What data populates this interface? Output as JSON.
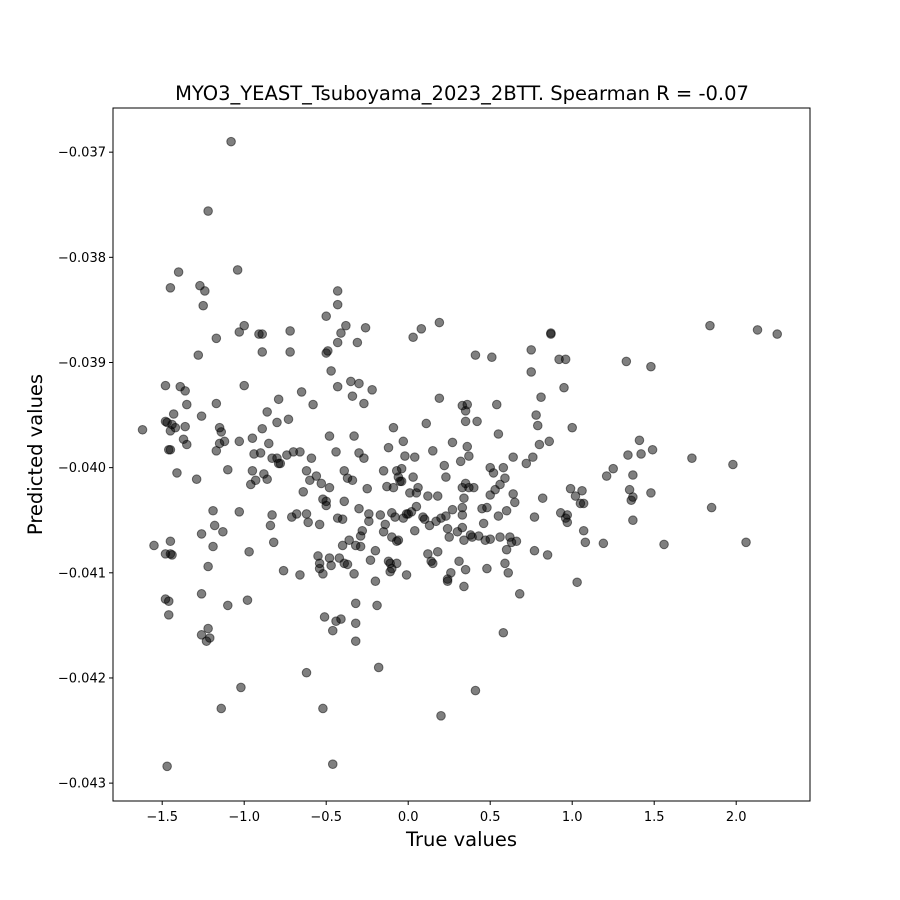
{
  "chart_data": {
    "type": "scatter",
    "title": "MYO3_YEAST_Tsuboyama_2023_2BTT. Spearman R = -0.07",
    "xlabel": "True values",
    "ylabel": "Predicted values",
    "xlim": [
      -1.8,
      2.45
    ],
    "ylim": [
      -0.04317,
      -0.03658
    ],
    "x_ticks": [
      -1.5,
      -1.0,
      -0.5,
      0.0,
      0.5,
      1.0,
      1.5,
      2.0
    ],
    "x_tick_labels": [
      "−1.5",
      "−1.0",
      "−0.5",
      "0.0",
      "0.5",
      "1.0",
      "1.5",
      "2.0"
    ],
    "y_ticks": [
      -0.037,
      -0.038,
      -0.039,
      -0.04,
      -0.041,
      -0.042,
      -0.043
    ],
    "y_tick_labels": [
      "−0.037",
      "−0.038",
      "−0.039",
      "−0.040",
      "−0.041",
      "−0.042",
      "−0.043"
    ],
    "grid": false,
    "legend": "none",
    "marker_color": "#000000",
    "marker_alpha": 0.5,
    "points": [
      [
        -1.62,
        -0.03964
      ],
      [
        -1.55,
        -0.04074
      ],
      [
        -1.48,
        -0.03922
      ],
      [
        -1.48,
        -0.03956
      ],
      [
        -1.47,
        -0.03957
      ],
      [
        -1.46,
        -0.03983
      ],
      [
        -1.45,
        -0.03983
      ],
      [
        -1.48,
        -0.04082
      ],
      [
        -1.45,
        -0.04082
      ],
      [
        -1.48,
        -0.04125
      ],
      [
        -1.46,
        -0.04127
      ],
      [
        -1.46,
        -0.0414
      ],
      [
        -1.47,
        -0.04284
      ],
      [
        -1.45,
        -0.03829
      ],
      [
        -1.4,
        -0.03814
      ],
      [
        -1.43,
        -0.03949
      ],
      [
        -1.44,
        -0.03959
      ],
      [
        -1.45,
        -0.03965
      ],
      [
        -1.42,
        -0.03962
      ],
      [
        -1.41,
        -0.04005
      ],
      [
        -1.39,
        -0.03923
      ],
      [
        -1.36,
        -0.03927
      ],
      [
        -1.35,
        -0.0394
      ],
      [
        -1.37,
        -0.03973
      ],
      [
        -1.35,
        -0.03978
      ],
      [
        -1.36,
        -0.03961
      ],
      [
        -1.45,
        -0.0407
      ],
      [
        -1.44,
        -0.04083
      ],
      [
        -1.28,
        -0.03893
      ],
      [
        -1.29,
        -0.04011
      ],
      [
        -1.27,
        -0.03827
      ],
      [
        -1.24,
        -0.03832
      ],
      [
        -1.25,
        -0.03846
      ],
      [
        -1.22,
        -0.03756
      ],
      [
        -1.26,
        -0.03951
      ],
      [
        -1.26,
        -0.04063
      ],
      [
        -1.26,
        -0.0412
      ],
      [
        -1.26,
        -0.04159
      ],
      [
        -1.22,
        -0.04153
      ],
      [
        -1.23,
        -0.04165
      ],
      [
        -1.21,
        -0.04162
      ],
      [
        -1.22,
        -0.04094
      ],
      [
        -1.19,
        -0.04041
      ],
      [
        -1.19,
        -0.04075
      ],
      [
        -1.18,
        -0.04055
      ],
      [
        -1.17,
        -0.03877
      ],
      [
        -1.17,
        -0.03939
      ],
      [
        -1.15,
        -0.03962
      ],
      [
        -1.14,
        -0.03966
      ],
      [
        -1.15,
        -0.03977
      ],
      [
        -1.17,
        -0.03984
      ],
      [
        -1.12,
        -0.03975
      ],
      [
        -1.13,
        -0.04061
      ],
      [
        -1.14,
        -0.04229
      ],
      [
        -1.1,
        -0.04002
      ],
      [
        -1.1,
        -0.04131
      ],
      [
        -1.08,
        -0.0369
      ],
      [
        -1.04,
        -0.03812
      ],
      [
        -1.03,
        -0.03871
      ],
      [
        -1.0,
        -0.03865
      ],
      [
        -1.0,
        -0.03922
      ],
      [
        -1.03,
        -0.03975
      ],
      [
        -1.03,
        -0.04042
      ],
      [
        -1.02,
        -0.04209
      ],
      [
        -0.98,
        -0.04126
      ],
      [
        -0.97,
        -0.0408
      ],
      [
        -0.96,
        -0.04016
      ],
      [
        -0.95,
        -0.03972
      ],
      [
        -0.94,
        -0.03987
      ],
      [
        -0.93,
        -0.04012
      ],
      [
        -0.95,
        -0.04003
      ],
      [
        -0.91,
        -0.03873
      ],
      [
        -0.89,
        -0.03873
      ],
      [
        -0.89,
        -0.0389
      ],
      [
        -0.9,
        -0.03986
      ],
      [
        -0.89,
        -0.03963
      ],
      [
        -0.86,
        -0.03947
      ],
      [
        -0.85,
        -0.03977
      ],
      [
        -0.86,
        -0.04011
      ],
      [
        -0.88,
        -0.04006
      ],
      [
        -0.84,
        -0.04055
      ],
      [
        -0.83,
        -0.04045
      ],
      [
        -0.82,
        -0.04071
      ],
      [
        -0.83,
        -0.03991
      ],
      [
        -0.8,
        -0.03991
      ],
      [
        -0.8,
        -0.03957
      ],
      [
        -0.79,
        -0.03935
      ],
      [
        -0.79,
        -0.03996
      ],
      [
        -0.78,
        -0.03996
      ],
      [
        -0.76,
        -0.04098
      ],
      [
        -0.74,
        -0.03988
      ],
      [
        -0.73,
        -0.03954
      ],
      [
        -0.72,
        -0.0387
      ],
      [
        -0.72,
        -0.0389
      ],
      [
        -0.7,
        -0.03985
      ],
      [
        -0.71,
        -0.04047
      ],
      [
        -0.68,
        -0.04044
      ],
      [
        -0.66,
        -0.03985
      ],
      [
        -0.66,
        -0.04102
      ],
      [
        -0.65,
        -0.03928
      ],
      [
        -0.64,
        -0.04023
      ],
      [
        -0.62,
        -0.04003
      ],
      [
        -0.62,
        -0.04044
      ],
      [
        -0.62,
        -0.04195
      ],
      [
        -0.61,
        -0.04052
      ],
      [
        -0.6,
        -0.04012
      ],
      [
        -0.59,
        -0.03991
      ],
      [
        -0.58,
        -0.0394
      ],
      [
        -0.56,
        -0.04008
      ],
      [
        -0.54,
        -0.04054
      ],
      [
        -0.55,
        -0.04084
      ],
      [
        -0.54,
        -0.04091
      ],
      [
        -0.54,
        -0.04096
      ],
      [
        -0.53,
        -0.04015
      ],
      [
        -0.52,
        -0.0403
      ],
      [
        -0.52,
        -0.04101
      ],
      [
        -0.52,
        -0.04229
      ],
      [
        -0.51,
        -0.04142
      ],
      [
        -0.5,
        -0.04032
      ],
      [
        -0.5,
        -0.04036
      ],
      [
        -0.5,
        -0.03856
      ],
      [
        -0.5,
        -0.03891
      ],
      [
        -0.49,
        -0.03889
      ],
      [
        -0.48,
        -0.0397
      ],
      [
        -0.48,
        -0.04019
      ],
      [
        -0.48,
        -0.04086
      ],
      [
        -0.47,
        -0.03908
      ],
      [
        -0.47,
        -0.04093
      ],
      [
        -0.46,
        -0.04155
      ],
      [
        -0.46,
        -0.04282
      ],
      [
        -0.44,
        -0.03985
      ],
      [
        -0.44,
        -0.04146
      ],
      [
        -0.43,
        -0.03832
      ],
      [
        -0.43,
        -0.03845
      ],
      [
        -0.43,
        -0.03881
      ],
      [
        -0.43,
        -0.03923
      ],
      [
        -0.43,
        -0.04048
      ],
      [
        -0.42,
        -0.04086
      ],
      [
        -0.41,
        -0.03872
      ],
      [
        -0.41,
        -0.04144
      ],
      [
        -0.4,
        -0.04049
      ],
      [
        -0.4,
        -0.04074
      ],
      [
        -0.39,
        -0.04003
      ],
      [
        -0.39,
        -0.04032
      ],
      [
        -0.39,
        -0.04091
      ],
      [
        -0.38,
        -0.03865
      ],
      [
        -0.37,
        -0.04092
      ],
      [
        -0.37,
        -0.0401
      ],
      [
        -0.36,
        -0.04069
      ],
      [
        -0.35,
        -0.03918
      ],
      [
        -0.34,
        -0.03932
      ],
      [
        -0.34,
        -0.04012
      ],
      [
        -0.33,
        -0.0397
      ],
      [
        -0.32,
        -0.04129
      ],
      [
        -0.32,
        -0.04148
      ],
      [
        -0.32,
        -0.04165
      ],
      [
        -0.32,
        -0.04074
      ],
      [
        -0.33,
        -0.04101
      ],
      [
        -0.31,
        -0.03881
      ],
      [
        -0.3,
        -0.0392
      ],
      [
        -0.3,
        -0.03986
      ],
      [
        -0.3,
        -0.04039
      ],
      [
        -0.29,
        -0.04065
      ],
      [
        -0.29,
        -0.04075
      ],
      [
        -0.28,
        -0.0406
      ],
      [
        -0.27,
        -0.03939
      ],
      [
        -0.27,
        -0.03991
      ],
      [
        -0.26,
        -0.03867
      ],
      [
        -0.25,
        -0.0402
      ],
      [
        -0.24,
        -0.04044
      ],
      [
        -0.24,
        -0.04051
      ],
      [
        -0.23,
        -0.04088
      ],
      [
        -0.22,
        -0.03926
      ],
      [
        -0.2,
        -0.04079
      ],
      [
        -0.2,
        -0.04108
      ],
      [
        -0.19,
        -0.04131
      ],
      [
        -0.18,
        -0.0419
      ],
      [
        -0.17,
        -0.04045
      ],
      [
        -0.15,
        -0.04061
      ],
      [
        -0.15,
        -0.04003
      ],
      [
        -0.14,
        -0.04054
      ],
      [
        -0.13,
        -0.04018
      ],
      [
        -0.12,
        -0.04089
      ],
      [
        -0.12,
        -0.03981
      ],
      [
        -0.11,
        -0.04091
      ],
      [
        -0.11,
        -0.04099
      ],
      [
        -0.1,
        -0.04043
      ],
      [
        -0.1,
        -0.04066
      ],
      [
        -0.1,
        -0.04096
      ],
      [
        -0.09,
        -0.04019
      ],
      [
        -0.09,
        -0.03962
      ],
      [
        -0.08,
        -0.04047
      ],
      [
        -0.07,
        -0.04003
      ],
      [
        -0.07,
        -0.0407
      ],
      [
        -0.07,
        -0.04091
      ],
      [
        -0.06,
        -0.04009
      ],
      [
        -0.06,
        -0.04069
      ],
      [
        -0.05,
        -0.04013
      ],
      [
        -0.04,
        -0.04001
      ],
      [
        -0.04,
        -0.04013
      ],
      [
        -0.03,
        -0.03975
      ],
      [
        -0.03,
        -0.04048
      ],
      [
        -0.02,
        -0.03989
      ],
      [
        -0.01,
        -0.04044
      ],
      [
        -0.01,
        -0.04102
      ],
      [
        0.0,
        -0.04044
      ],
      [
        0.01,
        -0.04024
      ],
      [
        0.02,
        -0.04042
      ],
      [
        0.03,
        -0.03876
      ],
      [
        0.03,
        -0.04009
      ],
      [
        0.04,
        -0.0399
      ],
      [
        0.04,
        -0.0406
      ],
      [
        0.05,
        -0.04024
      ],
      [
        0.05,
        -0.04037
      ],
      [
        0.06,
        -0.04019
      ],
      [
        0.08,
        -0.03868
      ],
      [
        0.09,
        -0.04047
      ],
      [
        0.1,
        -0.04049
      ],
      [
        0.11,
        -0.03958
      ],
      [
        0.12,
        -0.04027
      ],
      [
        0.12,
        -0.04082
      ],
      [
        0.13,
        -0.04055
      ],
      [
        0.14,
        -0.04089
      ],
      [
        0.15,
        -0.03984
      ],
      [
        0.15,
        -0.04091
      ],
      [
        0.17,
        -0.04051
      ],
      [
        0.18,
        -0.04027
      ],
      [
        0.18,
        -0.0408
      ],
      [
        0.19,
        -0.03934
      ],
      [
        0.19,
        -0.03862
      ],
      [
        0.2,
        -0.04048
      ],
      [
        0.2,
        -0.04236
      ],
      [
        0.22,
        -0.03998
      ],
      [
        0.23,
        -0.04009
      ],
      [
        0.23,
        -0.04046
      ],
      [
        0.24,
        -0.04058
      ],
      [
        0.24,
        -0.04106
      ],
      [
        0.24,
        -0.04108
      ],
      [
        0.25,
        -0.04066
      ],
      [
        0.26,
        -0.041
      ],
      [
        0.27,
        -0.0404
      ],
      [
        0.27,
        -0.03976
      ],
      [
        0.3,
        -0.04061
      ],
      [
        0.31,
        -0.04089
      ],
      [
        0.32,
        -0.03994
      ],
      [
        0.33,
        -0.03941
      ],
      [
        0.33,
        -0.04019
      ],
      [
        0.33,
        -0.04038
      ],
      [
        0.33,
        -0.04045
      ],
      [
        0.33,
        -0.04057
      ],
      [
        0.34,
        -0.04029
      ],
      [
        0.34,
        -0.04069
      ],
      [
        0.34,
        -0.04113
      ],
      [
        0.35,
        -0.04015
      ],
      [
        0.35,
        -0.04097
      ],
      [
        0.35,
        -0.03946
      ],
      [
        0.35,
        -0.03956
      ],
      [
        0.36,
        -0.0394
      ],
      [
        0.36,
        -0.0398
      ],
      [
        0.37,
        -0.03989
      ],
      [
        0.37,
        -0.04019
      ],
      [
        0.38,
        -0.04064
      ],
      [
        0.39,
        -0.04066
      ],
      [
        0.4,
        -0.04019
      ],
      [
        0.41,
        -0.03893
      ],
      [
        0.41,
        -0.04212
      ],
      [
        0.42,
        -0.03956
      ],
      [
        0.43,
        -0.04065
      ],
      [
        0.45,
        -0.04039
      ],
      [
        0.46,
        -0.04053
      ],
      [
        0.47,
        -0.04069
      ],
      [
        0.48,
        -0.04038
      ],
      [
        0.48,
        -0.04096
      ],
      [
        0.5,
        -0.04
      ],
      [
        0.5,
        -0.04026
      ],
      [
        0.5,
        -0.04068
      ],
      [
        0.51,
        -0.03895
      ],
      [
        0.52,
        -0.04005
      ],
      [
        0.53,
        -0.04021
      ],
      [
        0.54,
        -0.0394
      ],
      [
        0.55,
        -0.04046
      ],
      [
        0.55,
        -0.03968
      ],
      [
        0.56,
        -0.04016
      ],
      [
        0.56,
        -0.04066
      ],
      [
        0.58,
        -0.04
      ],
      [
        0.58,
        -0.04157
      ],
      [
        0.59,
        -0.0401
      ],
      [
        0.59,
        -0.04091
      ],
      [
        0.6,
        -0.04078
      ],
      [
        0.6,
        -0.04041
      ],
      [
        0.61,
        -0.041
      ],
      [
        0.62,
        -0.04066
      ],
      [
        0.63,
        -0.04071
      ],
      [
        0.64,
        -0.0399
      ],
      [
        0.64,
        -0.04025
      ],
      [
        0.65,
        -0.04033
      ],
      [
        0.66,
        -0.0407
      ],
      [
        0.68,
        -0.0412
      ],
      [
        0.72,
        -0.03996
      ],
      [
        0.75,
        -0.03888
      ],
      [
        0.75,
        -0.03909
      ],
      [
        0.76,
        -0.0399
      ],
      [
        0.77,
        -0.04047
      ],
      [
        0.77,
        -0.04079
      ],
      [
        0.78,
        -0.0395
      ],
      [
        0.79,
        -0.0396
      ],
      [
        0.8,
        -0.03978
      ],
      [
        0.81,
        -0.03933
      ],
      [
        0.82,
        -0.04029
      ],
      [
        0.85,
        -0.04083
      ],
      [
        0.86,
        -0.03975
      ],
      [
        0.87,
        -0.03872
      ],
      [
        0.87,
        -0.03873
      ],
      [
        0.92,
        -0.03897
      ],
      [
        0.93,
        -0.04043
      ],
      [
        0.95,
        -0.03924
      ],
      [
        0.96,
        -0.03897
      ],
      [
        0.96,
        -0.04048
      ],
      [
        0.97,
        -0.04052
      ],
      [
        0.97,
        -0.04045
      ],
      [
        0.99,
        -0.0402
      ],
      [
        1.0,
        -0.03962
      ],
      [
        1.02,
        -0.04027
      ],
      [
        1.03,
        -0.04109
      ],
      [
        1.05,
        -0.04034
      ],
      [
        1.06,
        -0.04022
      ],
      [
        1.07,
        -0.04034
      ],
      [
        1.07,
        -0.0406
      ],
      [
        1.08,
        -0.04071
      ],
      [
        1.19,
        -0.04072
      ],
      [
        1.21,
        -0.04008
      ],
      [
        1.25,
        -0.04001
      ],
      [
        1.33,
        -0.03899
      ],
      [
        1.34,
        -0.03988
      ],
      [
        1.35,
        -0.04021
      ],
      [
        1.36,
        -0.04031
      ],
      [
        1.37,
        -0.04007
      ],
      [
        1.37,
        -0.04028
      ],
      [
        1.37,
        -0.0405
      ],
      [
        1.41,
        -0.03974
      ],
      [
        1.42,
        -0.03987
      ],
      [
        1.48,
        -0.03904
      ],
      [
        1.48,
        -0.04024
      ],
      [
        1.49,
        -0.03983
      ],
      [
        1.56,
        -0.04073
      ],
      [
        1.73,
        -0.03991
      ],
      [
        1.84,
        -0.03865
      ],
      [
        1.85,
        -0.04038
      ],
      [
        1.98,
        -0.03997
      ],
      [
        2.06,
        -0.04071
      ],
      [
        2.13,
        -0.03869
      ],
      [
        2.25,
        -0.03873
      ]
    ]
  }
}
